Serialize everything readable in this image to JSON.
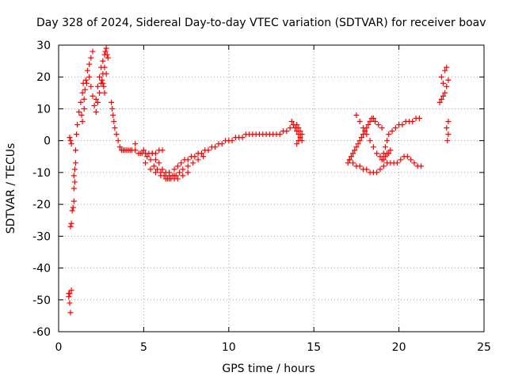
{
  "chart_data": {
    "type": "scatter",
    "title": "Day 328 of 2024, Sidereal Day-to-day VTEC variation (SDTVAR) for receiver boav",
    "xlabel": "GPS time / hours",
    "ylabel": "SDTVAR / TECUs",
    "xlim": [
      0,
      25
    ],
    "ylim": [
      -60,
      30
    ],
    "xticks": [
      0,
      5,
      10,
      15,
      20,
      25
    ],
    "yticks": [
      -60,
      -50,
      -40,
      -30,
      -20,
      -10,
      0,
      10,
      20,
      30
    ],
    "grid": true,
    "marker": "+",
    "colors": {
      "series": "#ff0000",
      "grid": "#a0a0a0",
      "axis": "#000000"
    },
    "series": [
      {
        "name": "SDTVAR",
        "x": [
          0.65,
          0.7,
          0.75,
          0.6,
          0.65,
          0.7,
          0.75,
          0.7,
          0.75,
          0.8,
          0.85,
          0.9,
          0.9,
          0.95,
          0.9,
          0.95,
          1.0,
          0.6,
          0.65,
          1.0,
          1.05,
          1.1,
          1.2,
          1.3,
          1.4,
          1.45,
          1.35,
          1.4,
          1.5,
          1.5,
          1.55,
          1.6,
          1.65,
          1.7,
          1.8,
          1.9,
          2.0,
          1.8,
          1.9,
          2.0,
          2.1,
          2.2,
          2.3,
          2.4,
          2.5,
          2.6,
          2.7,
          2.75,
          2.8,
          2.85,
          2.9,
          2.2,
          2.3,
          2.4,
          2.5,
          2.6,
          2.7,
          2.8,
          2.55,
          2.6,
          2.65,
          2.7,
          3.1,
          3.15,
          3.2,
          3.25,
          3.3,
          3.4,
          3.5,
          3.6,
          3.7,
          3.8,
          3.9,
          4.0,
          4.1,
          4.2,
          4.3,
          4.5,
          4.7,
          4.9,
          5.1,
          5.3,
          5.5,
          5.7,
          5.9,
          6.1,
          4.5,
          4.8,
          5.1,
          5.4,
          5.7,
          6.0,
          6.3,
          6.5,
          6.8,
          5.0,
          5.2,
          5.4,
          5.6,
          5.8,
          6.0,
          6.2,
          6.4,
          6.6,
          6.8,
          7.0,
          7.3,
          7.6,
          5.5,
          5.7,
          5.9,
          6.1,
          6.3,
          6.5,
          6.7,
          6.9,
          7.1,
          7.3,
          7.6,
          7.9,
          8.2,
          8.5,
          6.5,
          6.8,
          7.0,
          7.2,
          7.4,
          7.6,
          7.8,
          8.0,
          8.2,
          8.4,
          8.6,
          8.8,
          9.0,
          9.2,
          9.4,
          9.6,
          9.8,
          10.0,
          10.2,
          10.4,
          10.6,
          10.8,
          11.0,
          11.2,
          11.4,
          11.6,
          11.8,
          12.0,
          12.2,
          12.4,
          12.6,
          12.8,
          13.0,
          13.2,
          13.4,
          13.6,
          13.8,
          14.0,
          14.1,
          14.2,
          13.7,
          13.8,
          13.9,
          14.0,
          14.1,
          14.2,
          14.3,
          14.0,
          14.1,
          14.2,
          14.3,
          17.0,
          17.1,
          17.2,
          17.3,
          17.4,
          17.5,
          17.6,
          17.7,
          17.8,
          17.9,
          18.0,
          18.1,
          18.2,
          18.3,
          18.4,
          18.5,
          18.6,
          18.8,
          19.0,
          17.1,
          17.3,
          17.5,
          17.7,
          17.9,
          18.1,
          18.3,
          18.5,
          18.7,
          18.9,
          19.1,
          17.5,
          17.7,
          17.9,
          18.1,
          18.3,
          18.5,
          18.7,
          18.9,
          19.1,
          19.3,
          19.5,
          19.7,
          19.9,
          20.1,
          20.3,
          20.5,
          20.7,
          20.9,
          21.1,
          21.3,
          19.2,
          19.3,
          19.4,
          19.5,
          19.0,
          19.1,
          19.2,
          19.3,
          19.4,
          19.6,
          19.8,
          20.0,
          20.2,
          20.4,
          20.6,
          20.8,
          21.0,
          21.2,
          22.4,
          22.5,
          22.6,
          22.7,
          22.8,
          22.9,
          22.5,
          22.6,
          22.7,
          22.8,
          22.9,
          22.8,
          22.9,
          22.85
        ],
        "y": [
          1,
          0,
          -1,
          -48,
          -51,
          -54,
          -47,
          -27,
          -26,
          -22,
          -21,
          -19,
          -15,
          -13,
          -11,
          -9,
          -7,
          -49,
          -48,
          -3,
          2,
          5,
          9,
          12,
          15,
          18,
          8,
          6,
          10,
          13,
          16,
          19,
          18,
          22,
          24,
          26,
          28,
          20,
          17,
          14,
          11,
          13,
          17,
          20,
          23,
          25,
          27,
          28,
          29,
          27,
          26,
          9,
          12,
          15,
          18,
          21,
          23,
          21,
          19,
          18,
          17,
          15,
          12,
          10,
          8,
          6,
          4,
          2,
          0,
          -2,
          -3,
          -3,
          -3,
          -3,
          -3,
          -3,
          -3,
          -3,
          -4,
          -4,
          -4,
          -4,
          -4,
          -4,
          -3,
          -3,
          -1,
          -4,
          -7,
          -9,
          -10,
          -11,
          -12,
          -12,
          -11,
          -3,
          -5,
          -6,
          -8,
          -9,
          -10,
          -11,
          -12,
          -12,
          -12,
          -12,
          -11,
          -10,
          -4,
          -6,
          -7,
          -9,
          -10,
          -11,
          -11,
          -11,
          -10,
          -9,
          -8,
          -7,
          -6,
          -5,
          -10,
          -9,
          -8,
          -7,
          -6,
          -6,
          -5,
          -5,
          -4,
          -4,
          -3,
          -3,
          -2,
          -2,
          -1,
          -1,
          0,
          0,
          0,
          1,
          1,
          1,
          2,
          2,
          2,
          2,
          2,
          2,
          2,
          2,
          2,
          2,
          2,
          3,
          3,
          4,
          5,
          5,
          4,
          3,
          6,
          5,
          4,
          3,
          2,
          1,
          0,
          -1,
          0,
          1,
          2,
          -7,
          -6,
          -5,
          -4,
          -3,
          -2,
          -1,
          0,
          1,
          2,
          3,
          4,
          5,
          6,
          7,
          7,
          6,
          5,
          4,
          -6,
          -7,
          -8,
          -8,
          -9,
          -9,
          -10,
          -10,
          -10,
          -9,
          -8,
          8,
          6,
          4,
          2,
          0,
          -2,
          -4,
          -5,
          -6,
          -7,
          -7,
          -7,
          -7,
          -6,
          -5,
          -5,
          -6,
          -7,
          -8,
          -8,
          -5,
          -4,
          -4,
          -3,
          -6,
          -4,
          -2,
          0,
          2,
          3,
          4,
          5,
          5,
          6,
          6,
          6,
          7,
          7,
          12,
          13,
          14,
          15,
          17,
          19,
          20,
          18,
          22,
          23,
          6,
          4,
          2,
          0
        ]
      }
    ]
  }
}
